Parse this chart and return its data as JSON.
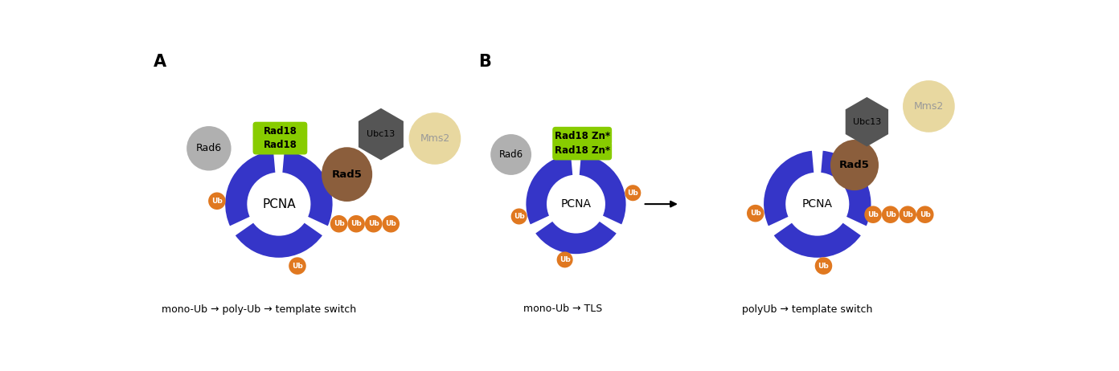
{
  "bg_color": "#ffffff",
  "pcna_color": "#3535c8",
  "ub_color": "#e07820",
  "ub_text_color": "#ffffff",
  "rad6_color": "#b0b0b0",
  "rad18_color": "#88cc00",
  "rad5_color": "#8B5E3C",
  "ubc13_color": "#555555",
  "mms2_color": "#e8d8a0",
  "label_A": "A",
  "label_B": "B",
  "text_mono_poly": "mono-Ub → poly-Ub → template switch",
  "text_mono_tls": "mono-Ub → TLS",
  "text_poly_ts": "polyUb → template switch"
}
